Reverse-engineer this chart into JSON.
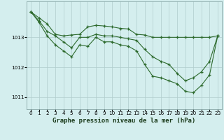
{
  "background_color": "#d4eeee",
  "grid_color": "#b0cccc",
  "line_color": "#2d6a2d",
  "title": "Graphe pression niveau de la mer (hPa)",
  "title_fontsize": 6.5,
  "tick_fontsize": 5.2,
  "xlim": [
    -0.5,
    23.5
  ],
  "ylim": [
    1010.6,
    1014.2
  ],
  "yticks": [
    1011,
    1012,
    1013
  ],
  "xticks": [
    0,
    1,
    2,
    3,
    4,
    5,
    6,
    7,
    8,
    9,
    10,
    11,
    12,
    13,
    14,
    15,
    16,
    17,
    18,
    19,
    20,
    21,
    22,
    23
  ],
  "series1": [
    1013.85,
    1013.65,
    1013.45,
    1013.1,
    1013.05,
    1013.08,
    1013.1,
    1013.35,
    1013.4,
    1013.38,
    1013.35,
    1013.3,
    1013.28,
    1013.1,
    1013.08,
    1013.0,
    1013.0,
    1013.0,
    1013.0,
    1013.0,
    1013.0,
    1013.0,
    1013.0,
    1013.05
  ],
  "series2": [
    1013.85,
    1013.55,
    1013.2,
    1013.05,
    1012.85,
    1012.65,
    1013.0,
    1013.0,
    1013.1,
    1013.05,
    1013.05,
    1013.0,
    1012.95,
    1012.9,
    1012.6,
    1012.35,
    1012.2,
    1012.1,
    1011.8,
    1011.55,
    1011.65,
    1011.85,
    1012.2,
    1013.05
  ],
  "series3": [
    1013.85,
    1013.5,
    1013.05,
    1012.75,
    1012.55,
    1012.35,
    1012.75,
    1012.7,
    1013.0,
    1012.85,
    1012.85,
    1012.75,
    1012.7,
    1012.55,
    1012.1,
    1011.7,
    1011.65,
    1011.55,
    1011.45,
    1011.2,
    1011.15,
    1011.4,
    1011.75,
    1013.05
  ]
}
